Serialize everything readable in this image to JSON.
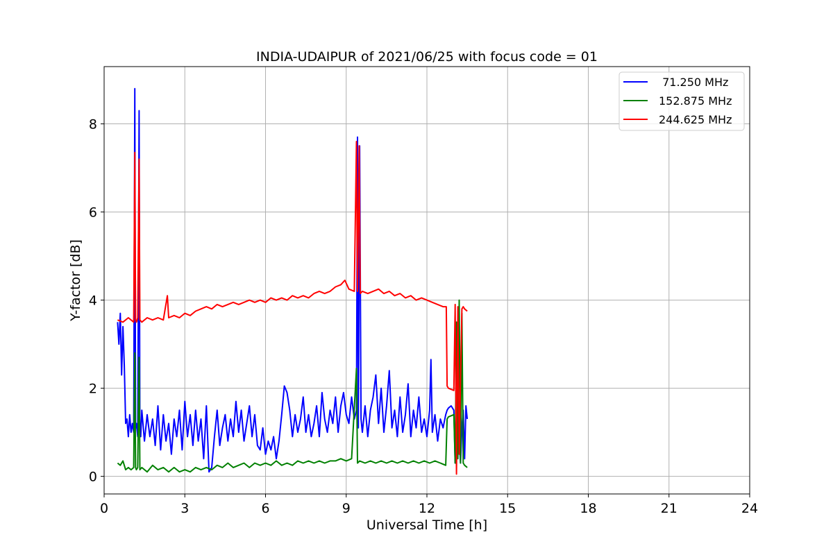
{
  "chart_data": {
    "type": "line",
    "title": "INDIA-UDAIPUR of 2021/06/25 with focus code = 01",
    "xlabel": "Universal Time [h]",
    "ylabel": "Y-factor [dB]",
    "xlim": [
      0,
      24
    ],
    "ylim": [
      -0.4,
      9.3
    ],
    "xticks": [
      0,
      3,
      6,
      9,
      12,
      15,
      18,
      21,
      24
    ],
    "xtick_labels": [
      "0",
      "3",
      "6",
      "9",
      "12",
      "15",
      "18",
      "21",
      "24"
    ],
    "yticks": [
      0,
      2,
      4,
      6,
      8
    ],
    "ytick_labels": [
      "0",
      "2",
      "4",
      "6",
      "8"
    ],
    "grid": true,
    "legend_position": "top-right",
    "series": [
      {
        "name": " 71.250 MHz",
        "color": "#0000ff",
        "x": [
          0.5,
          0.55,
          0.6,
          0.65,
          0.7,
          0.75,
          0.8,
          0.85,
          0.9,
          0.95,
          1.0,
          1.05,
          1.1,
          1.14,
          1.17,
          1.2,
          1.25,
          1.3,
          1.33,
          1.36,
          1.4,
          1.5,
          1.6,
          1.7,
          1.8,
          1.9,
          2.0,
          2.1,
          2.2,
          2.3,
          2.4,
          2.5,
          2.6,
          2.7,
          2.8,
          2.9,
          3.0,
          3.1,
          3.2,
          3.3,
          3.4,
          3.5,
          3.6,
          3.7,
          3.8,
          3.9,
          4.0,
          4.1,
          4.2,
          4.3,
          4.4,
          4.5,
          4.6,
          4.7,
          4.8,
          4.9,
          5.0,
          5.1,
          5.2,
          5.3,
          5.4,
          5.5,
          5.6,
          5.7,
          5.8,
          5.9,
          6.0,
          6.1,
          6.2,
          6.3,
          6.4,
          6.5,
          6.6,
          6.7,
          6.8,
          6.9,
          7.0,
          7.1,
          7.2,
          7.3,
          7.4,
          7.5,
          7.6,
          7.7,
          7.8,
          7.9,
          8.0,
          8.1,
          8.2,
          8.3,
          8.4,
          8.5,
          8.6,
          8.7,
          8.8,
          8.9,
          9.0,
          9.1,
          9.2,
          9.3,
          9.38,
          9.42,
          9.45,
          9.5,
          9.55,
          9.6,
          9.7,
          9.8,
          9.9,
          10.0,
          10.1,
          10.2,
          10.3,
          10.4,
          10.5,
          10.6,
          10.7,
          10.8,
          10.9,
          11.0,
          11.1,
          11.2,
          11.3,
          11.4,
          11.5,
          11.6,
          11.7,
          11.8,
          11.9,
          12.0,
          12.1,
          12.15,
          12.2,
          12.3,
          12.4,
          12.5,
          12.6,
          12.7,
          12.75,
          12.8,
          12.9,
          13.0,
          13.05,
          13.1,
          13.15,
          13.2,
          13.25,
          13.3,
          13.35,
          13.4,
          13.45,
          13.5
        ],
        "y": [
          3.5,
          3.0,
          3.7,
          2.3,
          3.4,
          2.5,
          1.2,
          1.3,
          0.9,
          1.4,
          1.0,
          1.2,
          1.0,
          8.8,
          1.1,
          1.2,
          0.9,
          8.3,
          1.0,
          0.9,
          1.5,
          0.8,
          1.4,
          0.9,
          1.3,
          0.7,
          1.6,
          0.6,
          1.4,
          0.8,
          1.2,
          0.5,
          1.3,
          0.9,
          1.5,
          0.6,
          1.7,
          0.9,
          1.4,
          0.7,
          1.5,
          0.8,
          1.3,
          0.4,
          1.6,
          0.1,
          0.2,
          0.9,
          1.5,
          0.7,
          1.1,
          1.4,
          0.8,
          1.3,
          0.9,
          1.7,
          1.0,
          1.5,
          0.8,
          1.2,
          1.6,
          0.9,
          1.4,
          0.7,
          0.6,
          1.1,
          0.5,
          0.8,
          0.6,
          0.9,
          0.4,
          0.8,
          1.4,
          2.05,
          1.9,
          1.5,
          0.9,
          1.4,
          1.0,
          1.3,
          1.8,
          1.0,
          1.4,
          0.9,
          1.2,
          1.6,
          0.9,
          1.9,
          1.3,
          1.0,
          1.5,
          1.2,
          1.8,
          1.0,
          1.6,
          1.9,
          1.4,
          1.2,
          1.8,
          1.3,
          1.5,
          7.7,
          1.1,
          7.5,
          1.3,
          1.0,
          1.6,
          0.9,
          1.5,
          1.8,
          2.3,
          1.2,
          2.0,
          1.0,
          1.6,
          2.4,
          1.1,
          1.5,
          0.9,
          1.8,
          1.0,
          1.4,
          2.1,
          0.9,
          1.5,
          1.1,
          1.8,
          1.0,
          1.3,
          0.9,
          1.5,
          2.65,
          1.0,
          1.4,
          0.8,
          1.3,
          1.1,
          1.4,
          1.5,
          1.55,
          1.6,
          1.5,
          0.3,
          1.2,
          0.5,
          0.9,
          0.3,
          1.1,
          1.5,
          0.4,
          1.6,
          1.3
        ]
      },
      {
        "name": "152.875 MHz",
        "color": "#008000",
        "x": [
          0.5,
          0.6,
          0.7,
          0.8,
          0.9,
          1.0,
          1.1,
          1.14,
          1.17,
          1.2,
          1.25,
          1.3,
          1.33,
          1.4,
          1.6,
          1.8,
          2.0,
          2.2,
          2.4,
          2.6,
          2.8,
          3.0,
          3.2,
          3.4,
          3.6,
          3.8,
          4.0,
          4.2,
          4.4,
          4.6,
          4.8,
          5.0,
          5.2,
          5.4,
          5.6,
          5.8,
          6.0,
          6.2,
          6.4,
          6.6,
          6.8,
          7.0,
          7.2,
          7.4,
          7.6,
          7.8,
          8.0,
          8.2,
          8.4,
          8.6,
          8.8,
          9.0,
          9.2,
          9.38,
          9.42,
          9.5,
          9.7,
          9.9,
          10.1,
          10.3,
          10.5,
          10.7,
          10.9,
          11.1,
          11.3,
          11.5,
          11.7,
          11.9,
          12.1,
          12.3,
          12.5,
          12.7,
          12.75,
          12.8,
          13.0,
          13.05,
          13.1,
          13.15,
          13.2,
          13.25,
          13.3,
          13.35,
          13.4,
          13.5
        ],
        "y": [
          0.3,
          0.25,
          0.35,
          0.15,
          0.2,
          0.15,
          0.2,
          2.8,
          0.2,
          0.15,
          0.2,
          2.7,
          0.15,
          0.2,
          0.1,
          0.25,
          0.15,
          0.2,
          0.1,
          0.2,
          0.1,
          0.15,
          0.1,
          0.2,
          0.15,
          0.2,
          0.15,
          0.25,
          0.2,
          0.3,
          0.2,
          0.25,
          0.3,
          0.2,
          0.3,
          0.25,
          0.3,
          0.25,
          0.35,
          0.25,
          0.3,
          0.25,
          0.35,
          0.3,
          0.35,
          0.3,
          0.35,
          0.3,
          0.35,
          0.35,
          0.4,
          0.35,
          0.4,
          2.45,
          0.3,
          0.35,
          0.3,
          0.35,
          0.3,
          0.35,
          0.3,
          0.35,
          0.3,
          0.35,
          0.3,
          0.35,
          0.3,
          0.35,
          0.3,
          0.35,
          0.3,
          0.25,
          1.3,
          1.35,
          1.4,
          0.3,
          3.5,
          0.4,
          4.0,
          0.3,
          3.7,
          0.3,
          0.25,
          0.2
        ]
      },
      {
        "name": "244.625 MHz",
        "color": "#ff0000",
        "x": [
          0.5,
          0.7,
          0.9,
          1.1,
          1.14,
          1.17,
          1.2,
          1.25,
          1.3,
          1.33,
          1.4,
          1.6,
          1.8,
          2.0,
          2.2,
          2.35,
          2.4,
          2.6,
          2.8,
          3.0,
          3.2,
          3.4,
          3.6,
          3.8,
          4.0,
          4.2,
          4.4,
          4.6,
          4.8,
          5.0,
          5.2,
          5.4,
          5.6,
          5.8,
          6.0,
          6.2,
          6.4,
          6.6,
          6.8,
          7.0,
          7.2,
          7.4,
          7.6,
          7.8,
          8.0,
          8.2,
          8.4,
          8.6,
          8.8,
          8.95,
          9.1,
          9.3,
          9.38,
          9.42,
          9.48,
          9.52,
          9.6,
          9.8,
          10.0,
          10.2,
          10.4,
          10.6,
          10.8,
          11.0,
          11.2,
          11.4,
          11.6,
          11.8,
          12.0,
          12.2,
          12.4,
          12.6,
          12.72,
          12.75,
          12.8,
          13.0,
          13.05,
          13.1,
          13.15,
          13.2,
          13.25,
          13.3,
          13.35,
          13.4,
          13.5
        ],
        "y": [
          3.55,
          3.5,
          3.6,
          3.5,
          7.35,
          3.55,
          3.5,
          3.6,
          7.2,
          3.55,
          3.5,
          3.6,
          3.55,
          3.6,
          3.55,
          4.1,
          3.6,
          3.65,
          3.6,
          3.7,
          3.65,
          3.75,
          3.8,
          3.85,
          3.8,
          3.9,
          3.85,
          3.9,
          3.95,
          3.9,
          3.95,
          4.0,
          3.95,
          4.0,
          3.95,
          4.05,
          4.0,
          4.05,
          4.0,
          4.1,
          4.05,
          4.1,
          4.05,
          4.15,
          4.2,
          4.15,
          4.2,
          4.3,
          4.35,
          4.45,
          4.25,
          4.2,
          7.6,
          4.2,
          7.5,
          4.15,
          4.2,
          4.15,
          4.2,
          4.25,
          4.15,
          4.2,
          4.1,
          4.15,
          4.05,
          4.1,
          4.0,
          4.05,
          4.0,
          3.95,
          3.9,
          3.85,
          3.85,
          2.05,
          2.0,
          1.95,
          3.9,
          0.05,
          3.85,
          0.5,
          2.2,
          3.8,
          3.85,
          3.8,
          3.75
        ]
      }
    ]
  }
}
